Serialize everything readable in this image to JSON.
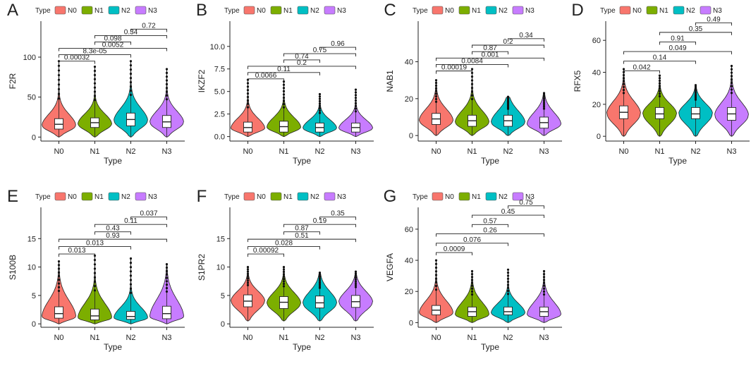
{
  "figure": {
    "legend_title": "Type",
    "xlabel": "Type"
  },
  "colors": {
    "N0": "#F8766D",
    "N1": "#7CAE00",
    "N2": "#00BFC4",
    "N3": "#C77CFF"
  },
  "chart_data": [
    {
      "panel": "A",
      "type": "violin",
      "ylabel": "F2R",
      "categories": [
        "N0",
        "N1",
        "N2",
        "N3"
      ],
      "legend": [
        "N0",
        "N1",
        "N2",
        "N3"
      ],
      "ylim": [
        -5,
        145
      ],
      "yticks": [
        0,
        50,
        100
      ],
      "series": [
        {
          "name": "N0",
          "median": 16,
          "q1": 10,
          "q3": 23,
          "min": 0,
          "max": 95,
          "peak": 14,
          "dist_min": 0,
          "dist_max": 95
        },
        {
          "name": "N1",
          "median": 18,
          "q1": 12,
          "q3": 24,
          "min": 0,
          "max": 88,
          "peak": 16,
          "dist_min": 0,
          "dist_max": 88
        },
        {
          "name": "N2",
          "median": 22,
          "q1": 14,
          "q3": 30,
          "min": 0,
          "max": 95,
          "peak": 20,
          "dist_min": 0,
          "dist_max": 95
        },
        {
          "name": "N3",
          "median": 19,
          "q1": 12,
          "q3": 27,
          "min": 0,
          "max": 85,
          "peak": 18,
          "dist_min": 0,
          "dist_max": 85
        }
      ],
      "comparisons": [
        {
          "from": "N0",
          "to": "N1",
          "p": "0.00032",
          "y": 95
        },
        {
          "from": "N0",
          "to": "N2",
          "p": "8.3e-05",
          "y": 103
        },
        {
          "from": "N0",
          "to": "N3",
          "p": "0.0052",
          "y": 111
        },
        {
          "from": "N1",
          "to": "N2",
          "p": "0.098",
          "y": 119
        },
        {
          "from": "N1",
          "to": "N3",
          "p": "0.34",
          "y": 127
        },
        {
          "from": "N2",
          "to": "N3",
          "p": "0.72",
          "y": 135
        }
      ]
    },
    {
      "panel": "B",
      "type": "violin",
      "ylabel": "IKZF2",
      "categories": [
        "N0",
        "N1",
        "N2",
        "N3"
      ],
      "legend": [
        "N0",
        "N1",
        "N2",
        "N3"
      ],
      "ylim": [
        -0.5,
        12.8
      ],
      "yticks": [
        0.0,
        2.5,
        5.0,
        7.5,
        10.0
      ],
      "ytick_labels": [
        "0.0",
        "2.5",
        "5.0",
        "7.5",
        "10.0"
      ],
      "series": [
        {
          "name": "N0",
          "median": 1.0,
          "q1": 0.5,
          "q3": 1.6,
          "min": 0,
          "max": 6.3,
          "peak": 0.9,
          "dist_min": 0,
          "dist_max": 6.3
        },
        {
          "name": "N1",
          "median": 1.1,
          "q1": 0.5,
          "q3": 1.7,
          "min": 0,
          "max": 6.1,
          "peak": 1.0,
          "dist_min": 0,
          "dist_max": 6.1
        },
        {
          "name": "N2",
          "median": 1.0,
          "q1": 0.5,
          "q3": 1.5,
          "min": 0,
          "max": 4.7,
          "peak": 0.9,
          "dist_min": 0,
          "dist_max": 4.7
        },
        {
          "name": "N3",
          "median": 1.0,
          "q1": 0.5,
          "q3": 1.5,
          "min": 0,
          "max": 5.2,
          "peak": 0.9,
          "dist_min": 0,
          "dist_max": 5.2
        }
      ],
      "comparisons": [
        {
          "from": "N0",
          "to": "N1",
          "p": "0.0066",
          "y": 6.4
        },
        {
          "from": "N0",
          "to": "N2",
          "p": "0.11",
          "y": 7.1
        },
        {
          "from": "N0",
          "to": "N3",
          "p": "0.2",
          "y": 7.8
        },
        {
          "from": "N1",
          "to": "N2",
          "p": "0.74",
          "y": 8.5
        },
        {
          "from": "N1",
          "to": "N3",
          "p": "0.75",
          "y": 9.2
        },
        {
          "from": "N2",
          "to": "N3",
          "p": "0.96",
          "y": 9.9
        }
      ]
    },
    {
      "panel": "C",
      "type": "violin",
      "ylabel": "NAB1",
      "categories": [
        "N0",
        "N1",
        "N2",
        "N3"
      ],
      "legend": [
        "N0",
        "N1",
        "N2",
        "N3"
      ],
      "ylim": [
        -3,
        62
      ],
      "yticks": [
        0,
        20,
        40
      ],
      "series": [
        {
          "name": "N0",
          "median": 9,
          "q1": 6,
          "q3": 12,
          "min": 0,
          "max": 30,
          "peak": 8,
          "dist_min": 0,
          "dist_max": 30
        },
        {
          "name": "N1",
          "median": 8,
          "q1": 5,
          "q3": 11,
          "min": 0,
          "max": 36,
          "peak": 7,
          "dist_min": 0,
          "dist_max": 36
        },
        {
          "name": "N2",
          "median": 8,
          "q1": 5,
          "q3": 11,
          "min": 0,
          "max": 21,
          "peak": 7,
          "dist_min": 0,
          "dist_max": 21
        },
        {
          "name": "N3",
          "median": 7,
          "q1": 4,
          "q3": 10,
          "min": 0,
          "max": 23,
          "peak": 6,
          "dist_min": 0,
          "dist_max": 23
        }
      ],
      "comparisons": [
        {
          "from": "N0",
          "to": "N1",
          "p": "0.00019",
          "y": 35
        },
        {
          "from": "N0",
          "to": "N2",
          "p": "0.0084",
          "y": 38.5
        },
        {
          "from": "N0",
          "to": "N3",
          "p": "0.001",
          "y": 42
        },
        {
          "from": "N1",
          "to": "N2",
          "p": "0.87",
          "y": 45.5
        },
        {
          "from": "N1",
          "to": "N3",
          "p": "0.2",
          "y": 49
        },
        {
          "from": "N2",
          "to": "N3",
          "p": "0.34",
          "y": 52.5
        }
      ]
    },
    {
      "panel": "D",
      "type": "violin",
      "ylabel": "RFX5",
      "categories": [
        "N0",
        "N1",
        "N2",
        "N3"
      ],
      "legend": [
        "N0",
        "N1",
        "N2",
        "N3"
      ],
      "ylim": [
        -3,
        72
      ],
      "yticks": [
        0,
        20,
        40,
        60
      ],
      "series": [
        {
          "name": "N0",
          "median": 15,
          "q1": 11,
          "q3": 19,
          "min": 0,
          "max": 42,
          "peak": 14,
          "dist_min": 0,
          "dist_max": 42
        },
        {
          "name": "N1",
          "median": 14,
          "q1": 11,
          "q3": 18,
          "min": 0,
          "max": 38,
          "peak": 14,
          "dist_min": 0,
          "dist_max": 38
        },
        {
          "name": "N2",
          "median": 14,
          "q1": 11,
          "q3": 18,
          "min": 0,
          "max": 32,
          "peak": 14,
          "dist_min": 0,
          "dist_max": 32
        },
        {
          "name": "N3",
          "median": 14,
          "q1": 10,
          "q3": 18,
          "min": 0,
          "max": 44,
          "peak": 13,
          "dist_min": 0,
          "dist_max": 44
        }
      ],
      "comparisons": [
        {
          "from": "N0",
          "to": "N1",
          "p": "0.042",
          "y": 41
        },
        {
          "from": "N0",
          "to": "N2",
          "p": "0.14",
          "y": 47
        },
        {
          "from": "N0",
          "to": "N3",
          "p": "0.049",
          "y": 53
        },
        {
          "from": "N1",
          "to": "N2",
          "p": "0.91",
          "y": 59
        },
        {
          "from": "N1",
          "to": "N3",
          "p": "0.35",
          "y": 65
        },
        {
          "from": "N2",
          "to": "N3",
          "p": "0.49",
          "y": 71
        }
      ]
    },
    {
      "panel": "E",
      "type": "violin",
      "ylabel": "S100B",
      "categories": [
        "N0",
        "N1",
        "N2",
        "N3"
      ],
      "legend": [
        "N0",
        "N1",
        "N2",
        "N3"
      ],
      "ylim": [
        -0.6,
        20.5
      ],
      "yticks": [
        0,
        5,
        10,
        15
      ],
      "series": [
        {
          "name": "N0",
          "median": 1.8,
          "q1": 1.0,
          "q3": 3.0,
          "min": 0,
          "max": 11,
          "peak": 1.2,
          "dist_min": 0,
          "dist_max": 11
        },
        {
          "name": "N1",
          "median": 1.4,
          "q1": 0.7,
          "q3": 2.6,
          "min": 0,
          "max": 12,
          "peak": 1.0,
          "dist_min": 0,
          "dist_max": 12
        },
        {
          "name": "N2",
          "median": 1.3,
          "q1": 0.8,
          "q3": 2.2,
          "min": 0,
          "max": 11.5,
          "peak": 1.0,
          "dist_min": 0,
          "dist_max": 11.5
        },
        {
          "name": "N3",
          "median": 1.8,
          "q1": 0.9,
          "q3": 3.1,
          "min": 0,
          "max": 10.5,
          "peak": 1.2,
          "dist_min": 0,
          "dist_max": 10.5
        }
      ],
      "comparisons": [
        {
          "from": "N0",
          "to": "N1",
          "p": "0.013",
          "y": 12.3
        },
        {
          "from": "N0",
          "to": "N2",
          "p": "0.013",
          "y": 13.6
        },
        {
          "from": "N0",
          "to": "N3",
          "p": "0.93",
          "y": 14.9
        },
        {
          "from": "N1",
          "to": "N2",
          "p": "0.43",
          "y": 16.2
        },
        {
          "from": "N1",
          "to": "N3",
          "p": "0.11",
          "y": 17.5
        },
        {
          "from": "N2",
          "to": "N3",
          "p": "0.037",
          "y": 18.8
        }
      ]
    },
    {
      "panel": "F",
      "type": "violin",
      "ylabel": "S1PR2",
      "categories": [
        "N0",
        "N1",
        "N2",
        "N3"
      ],
      "legend": [
        "N0",
        "N1",
        "N2",
        "N3"
      ],
      "ylim": [
        -0.6,
        20.5
      ],
      "yticks": [
        0,
        5,
        10,
        15
      ],
      "series": [
        {
          "name": "N0",
          "median": 4.0,
          "q1": 3.0,
          "q3": 5.1,
          "min": 0.5,
          "max": 10,
          "peak": 4.0,
          "dist_min": 0.5,
          "dist_max": 10
        },
        {
          "name": "N1",
          "median": 3.8,
          "q1": 2.7,
          "q3": 4.8,
          "min": 0.5,
          "max": 10,
          "peak": 3.6,
          "dist_min": 0.5,
          "dist_max": 10
        },
        {
          "name": "N2",
          "median": 3.7,
          "q1": 2.8,
          "q3": 4.9,
          "min": 0.5,
          "max": 9,
          "peak": 3.6,
          "dist_min": 0.5,
          "dist_max": 9
        },
        {
          "name": "N3",
          "median": 3.9,
          "q1": 2.9,
          "q3": 5.0,
          "min": 0.5,
          "max": 9.2,
          "peak": 3.8,
          "dist_min": 0.5,
          "dist_max": 9.2
        }
      ],
      "comparisons": [
        {
          "from": "N0",
          "to": "N1",
          "p": "0.00092",
          "y": 12.3
        },
        {
          "from": "N0",
          "to": "N2",
          "p": "0.028",
          "y": 13.6
        },
        {
          "from": "N0",
          "to": "N3",
          "p": "0.51",
          "y": 14.9
        },
        {
          "from": "N1",
          "to": "N2",
          "p": "0.87",
          "y": 16.2
        },
        {
          "from": "N1",
          "to": "N3",
          "p": "0.19",
          "y": 17.5
        },
        {
          "from": "N2",
          "to": "N3",
          "p": "0.35",
          "y": 18.8
        }
      ]
    },
    {
      "panel": "G",
      "type": "violin",
      "ylabel": "VEGFA",
      "categories": [
        "N0",
        "N1",
        "N2",
        "N3"
      ],
      "legend": [
        "N0",
        "N1",
        "N2",
        "N3"
      ],
      "ylim": [
        -3,
        74
      ],
      "yticks": [
        0,
        20,
        40,
        60
      ],
      "series": [
        {
          "name": "N0",
          "median": 8,
          "q1": 5,
          "q3": 11,
          "min": 0,
          "max": 40,
          "peak": 6,
          "dist_min": 0,
          "dist_max": 40
        },
        {
          "name": "N1",
          "median": 7,
          "q1": 4,
          "q3": 10,
          "min": 0,
          "max": 33,
          "peak": 5,
          "dist_min": 0,
          "dist_max": 33
        },
        {
          "name": "N2",
          "median": 7,
          "q1": 5,
          "q3": 10,
          "min": 0,
          "max": 34,
          "peak": 6,
          "dist_min": 0,
          "dist_max": 34
        },
        {
          "name": "N3",
          "median": 7,
          "q1": 4,
          "q3": 10,
          "min": 0,
          "max": 33,
          "peak": 5,
          "dist_min": 0,
          "dist_max": 33
        }
      ],
      "comparisons": [
        {
          "from": "N0",
          "to": "N1",
          "p": "0.0009",
          "y": 45
        },
        {
          "from": "N0",
          "to": "N2",
          "p": "0.076",
          "y": 51
        },
        {
          "from": "N0",
          "to": "N3",
          "p": "0.26",
          "y": 57
        },
        {
          "from": "N1",
          "to": "N2",
          "p": "0.57",
          "y": 63
        },
        {
          "from": "N1",
          "to": "N3",
          "p": "0.45",
          "y": 69
        },
        {
          "from": "N2",
          "to": "N3",
          "p": "0.75",
          "y": 75
        }
      ]
    }
  ]
}
